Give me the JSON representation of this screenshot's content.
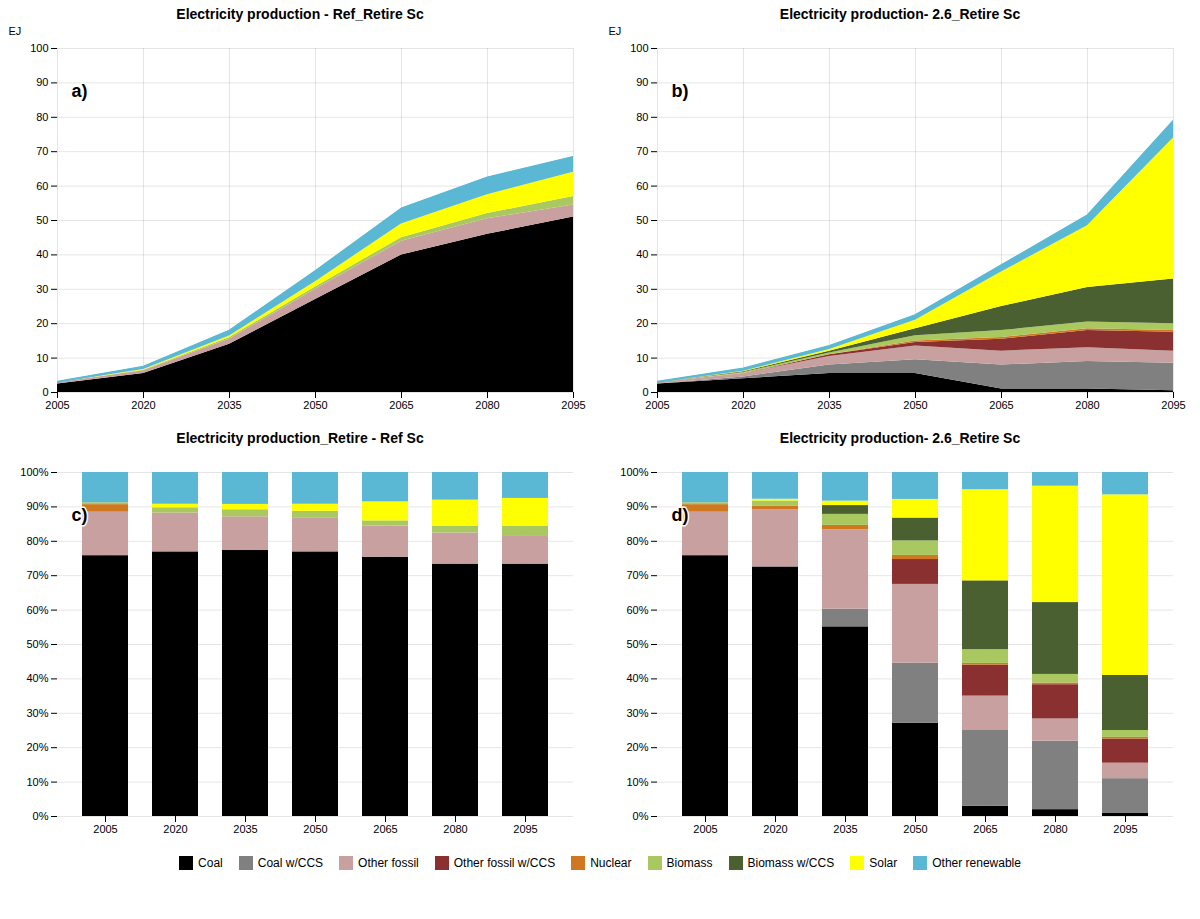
{
  "chart_data": [
    {
      "type": "area",
      "title": "Electricity production - Ref_Retire Sc",
      "ylabel": "EJ",
      "annotations": [
        "a)"
      ],
      "stacked": true,
      "grid": true,
      "legend": "bottom",
      "x": [
        2005,
        2020,
        2035,
        2050,
        2065,
        2080,
        2095
      ],
      "xlim": [
        2005,
        2095
      ],
      "xticks": [
        2005,
        2020,
        2035,
        2050,
        2065,
        2080,
        2095
      ],
      "ylim": [
        0,
        100
      ],
      "yticks": [
        0,
        10,
        20,
        30,
        40,
        50,
        60,
        70,
        80,
        90,
        100
      ],
      "series": [
        {
          "name": "Coal",
          "color": "#000000",
          "values": [
            2.5,
            5.5,
            14.0,
            27.0,
            40.0,
            46.0,
            51.0
          ]
        },
        {
          "name": "Coal w/CCS",
          "color": "#808080",
          "values": [
            0.0,
            0.0,
            0.0,
            0.0,
            0.0,
            0.0,
            0.0
          ]
        },
        {
          "name": "Other fossil",
          "color": "#c9a0a0",
          "values": [
            0.3,
            0.8,
            1.5,
            3.0,
            4.0,
            4.5,
            3.5
          ]
        },
        {
          "name": "Other fossil w/CCS",
          "color": "#8b3030",
          "values": [
            0.0,
            0.0,
            0.0,
            0.0,
            0.0,
            0.0,
            0.0
          ]
        },
        {
          "name": "Nuclear",
          "color": "#d07820",
          "values": [
            0.0,
            0.0,
            0.0,
            0.0,
            0.0,
            0.0,
            0.0
          ]
        },
        {
          "name": "Biomass",
          "color": "#aac860",
          "values": [
            0.0,
            0.2,
            0.4,
            0.7,
            1.0,
            1.5,
            2.5
          ]
        },
        {
          "name": "Biomass w/CCS",
          "color": "#4a6030",
          "values": [
            0.0,
            0.0,
            0.0,
            0.0,
            0.0,
            0.0,
            0.0
          ]
        },
        {
          "name": "Solar",
          "color": "#ffff00",
          "values": [
            0.0,
            0.2,
            0.5,
            1.5,
            4.0,
            5.5,
            7.0
          ]
        },
        {
          "name": "Other renewable",
          "color": "#5bb8d4",
          "values": [
            0.3,
            0.8,
            1.6,
            3.1,
            4.5,
            5.0,
            4.5
          ]
        },
        {
          "type": "line",
          "color": "#5bb8d4",
          "values": [
            3.1,
            7.5,
            18.0,
            35.3,
            53.5,
            62.5,
            68.5
          ]
        }
      ]
    },
    {
      "type": "area",
      "title": "Electricity production- 2.6_Retire Sc",
      "ylabel": "EJ",
      "annotations": [
        "b)"
      ],
      "stacked": true,
      "grid": true,
      "legend": "bottom",
      "x": [
        2005,
        2020,
        2035,
        2050,
        2065,
        2080,
        2095
      ],
      "xlim": [
        2005,
        2095
      ],
      "xticks": [
        2005,
        2020,
        2035,
        2050,
        2065,
        2080,
        2095
      ],
      "ylim": [
        0,
        100
      ],
      "yticks": [
        0,
        10,
        20,
        30,
        40,
        50,
        60,
        70,
        80,
        90,
        100
      ],
      "series": [
        {
          "name": "Coal",
          "color": "#000000",
          "values": [
            2.5,
            4.0,
            5.5,
            5.5,
            1.0,
            1.0,
            0.5
          ]
        },
        {
          "name": "Coal w/CCS",
          "color": "#808080",
          "values": [
            0.0,
            0.5,
            2.5,
            4.0,
            7.0,
            8.0,
            8.0
          ]
        },
        {
          "name": "Other fossil",
          "color": "#c9a0a0",
          "values": [
            0.3,
            1.0,
            2.5,
            4.0,
            4.0,
            4.0,
            3.5
          ]
        },
        {
          "name": "Other fossil w/CCS",
          "color": "#8b3030",
          "values": [
            0.0,
            0.0,
            0.5,
            1.0,
            3.5,
            5.0,
            5.5
          ]
        },
        {
          "name": "Nuclear",
          "color": "#d07820",
          "values": [
            0.0,
            0.0,
            0.0,
            0.5,
            0.5,
            0.5,
            0.5
          ]
        },
        {
          "name": "Biomass",
          "color": "#aac860",
          "values": [
            0.0,
            0.3,
            0.5,
            1.5,
            2.0,
            2.0,
            2.0
          ]
        },
        {
          "name": "Biomass w/CCS",
          "color": "#4a6030",
          "values": [
            0.0,
            0.2,
            0.5,
            2.0,
            7.0,
            10.0,
            13.0
          ]
        },
        {
          "name": "Solar",
          "color": "#ffff00",
          "values": [
            0.0,
            0.2,
            0.5,
            2.5,
            10.0,
            18.0,
            41.0
          ]
        },
        {
          "name": "Other renewable",
          "color": "#5bb8d4",
          "values": [
            0.3,
            0.8,
            1.0,
            1.5,
            2.0,
            3.0,
            5.0
          ]
        },
        {
          "type": "line",
          "color": "#5bb8d4",
          "values": [
            3.1,
            7.0,
            13.5,
            22.5,
            37.0,
            51.5,
            79.0
          ]
        }
      ]
    },
    {
      "type": "bar",
      "title": "Electricity production_Retire - Ref Sc",
      "annotations": [
        "c)"
      ],
      "stacked": true,
      "grid": true,
      "legend": "bottom",
      "categories": [
        "2005",
        "2020",
        "2035",
        "2050",
        "2065",
        "2080",
        "2095"
      ],
      "ylim": [
        0,
        1
      ],
      "yticks": [
        {
          "value": 0,
          "label": "0%"
        },
        {
          "value": 0.1,
          "label": "10%"
        },
        {
          "value": 0.2,
          "label": "20%"
        },
        {
          "value": 0.3,
          "label": "30%"
        },
        {
          "value": 0.4,
          "label": "40%"
        },
        {
          "value": 0.5,
          "label": "50%"
        },
        {
          "value": 0.6,
          "label": "60%"
        },
        {
          "value": 0.7,
          "label": "70%"
        },
        {
          "value": 0.8,
          "label": "80%"
        },
        {
          "value": 0.9,
          "label": "90%"
        },
        {
          "value": 1,
          "label": "100%"
        }
      ],
      "series": [
        {
          "name": "Coal",
          "color": "#000000",
          "values": [
            0.7582,
            0.7692,
            0.7732,
            0.7692,
            0.7538,
            0.7337,
            0.7337
          ]
        },
        {
          "name": "Coal w/CCS",
          "color": "#808080",
          "values": [
            0,
            0,
            0,
            0,
            0,
            0,
            0
          ]
        },
        {
          "name": "Other fossil",
          "color": "#c9a0a0",
          "values": [
            0.1264,
            0.1128,
            0.0979,
            0.0975,
            0.0904,
            0.0904,
            0.0804
          ]
        },
        {
          "name": "Other fossil w/CCS",
          "color": "#8b3030",
          "values": [
            0,
            0,
            0,
            0,
            0,
            0,
            0
          ]
        },
        {
          "name": "Nuclear",
          "color": "#d07820",
          "values": [
            0.022,
            0,
            0,
            0,
            0,
            0,
            0
          ]
        },
        {
          "name": "Biomass",
          "color": "#aac860",
          "values": [
            0.0055,
            0.0154,
            0.0206,
            0.0205,
            0.0151,
            0.0201,
            0.0301
          ]
        },
        {
          "name": "Biomass w/CCS",
          "color": "#4a6030",
          "values": [
            0,
            0,
            0,
            0,
            0,
            0,
            0
          ]
        },
        {
          "name": "Solar",
          "color": "#ffff00",
          "values": [
            0,
            0.0103,
            0.0155,
            0.0205,
            0.0553,
            0.0754,
            0.0804
          ]
        },
        {
          "name": "Other renewable",
          "color": "#5bb8d4",
          "values": [
            0.0879,
            0.0923,
            0.0928,
            0.0923,
            0.0854,
            0.0804,
            0.0754
          ]
        }
      ]
    },
    {
      "type": "bar",
      "title": "Electricity production- 2.6_Retire Sc",
      "annotations": [
        "d)"
      ],
      "stacked": true,
      "grid": true,
      "legend": "bottom",
      "categories": [
        "2005",
        "2020",
        "2035",
        "2050",
        "2065",
        "2080",
        "2095"
      ],
      "ylim": [
        0,
        1
      ],
      "yticks": [
        {
          "value": 0,
          "label": "0%"
        },
        {
          "value": 0.1,
          "label": "10%"
        },
        {
          "value": 0.2,
          "label": "20%"
        },
        {
          "value": 0.3,
          "label": "30%"
        },
        {
          "value": 0.4,
          "label": "40%"
        },
        {
          "value": 0.5,
          "label": "50%"
        },
        {
          "value": 0.6,
          "label": "60%"
        },
        {
          "value": 0.7,
          "label": "70%"
        },
        {
          "value": 0.8,
          "label": "80%"
        },
        {
          "value": 0.9,
          "label": "90%"
        },
        {
          "value": 1,
          "label": "100%"
        }
      ],
      "series": [
        {
          "name": "Coal",
          "color": "#000000",
          "values": [
            0.7582,
            0.7254,
            0.5513,
            0.2711,
            0.03,
            0.0199,
            0.01
          ]
        },
        {
          "name": "Coal w/CCS",
          "color": "#808080",
          "values": [
            0,
            0,
            0.0513,
            0.1747,
            0.22,
            0.199,
            0.1
          ]
        },
        {
          "name": "Other fossil",
          "color": "#c9a0a0",
          "values": [
            0.1264,
            0.1658,
            0.2308,
            0.2289,
            0.1,
            0.0647,
            0.045
          ]
        },
        {
          "name": "Other fossil w/CCS",
          "color": "#8b3030",
          "values": [
            0,
            0,
            0,
            0.0723,
            0.09,
            0.0995,
            0.07
          ]
        },
        {
          "name": "Nuclear",
          "color": "#d07820",
          "values": [
            0.022,
            0.0104,
            0.0128,
            0.012,
            0.005,
            0.005,
            0.005
          ]
        },
        {
          "name": "Biomass",
          "color": "#aac860",
          "values": [
            0.0055,
            0.0155,
            0.0321,
            0.0422,
            0.04,
            0.0249,
            0.02
          ]
        },
        {
          "name": "Biomass w/CCS",
          "color": "#4a6030",
          "values": [
            0,
            0,
            0.0256,
            0.0663,
            0.2,
            0.2089,
            0.16
          ]
        },
        {
          "name": "Solar",
          "color": "#ffff00",
          "values": [
            0,
            0.0052,
            0.0128,
            0.0542,
            0.265,
            0.3383,
            0.525
          ]
        },
        {
          "name": "Other renewable",
          "color": "#5bb8d4",
          "values": [
            0.0879,
            0.0777,
            0.0833,
            0.0783,
            0.05,
            0.0398,
            0.065
          ]
        }
      ]
    }
  ]
}
